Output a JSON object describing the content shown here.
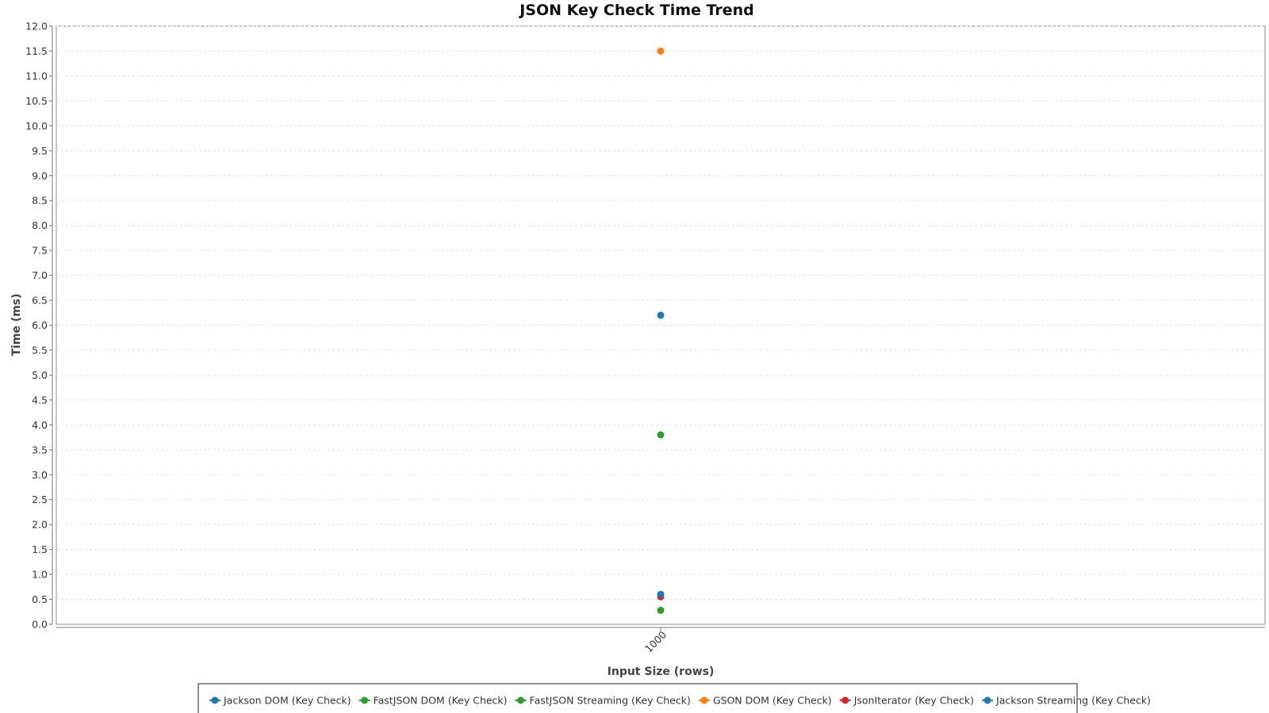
{
  "chart_data": {
    "type": "scatter",
    "title": "JSON Key Check Time Trend",
    "xlabel": "Input Size (rows)",
    "ylabel": "Time (ms)",
    "categories": [
      "1000"
    ],
    "ylim": [
      0,
      12
    ],
    "ytick_step": 0.5,
    "grid": true,
    "legend_position": "bottom",
    "series": [
      {
        "name": "Jackson DOM (Key Check)",
        "color": "#1f77b4",
        "values": [
          6.2
        ]
      },
      {
        "name": "FastJSON DOM (Key Check)",
        "color": "#2ca02c",
        "values": [
          3.8
        ]
      },
      {
        "name": "FastJSON Streaming (Key Check)",
        "color": "#2ca02c",
        "values": [
          0.28
        ]
      },
      {
        "name": "GSON DOM (Key Check)",
        "color": "#ff7f0e",
        "values": [
          11.5
        ]
      },
      {
        "name": "JsonIterator (Key Check)",
        "color": "#d62728",
        "values": [
          0.55
        ]
      },
      {
        "name": "Jackson Streaming (Key Check)",
        "color": "#1f77b4",
        "values": [
          0.6
        ]
      }
    ]
  }
}
